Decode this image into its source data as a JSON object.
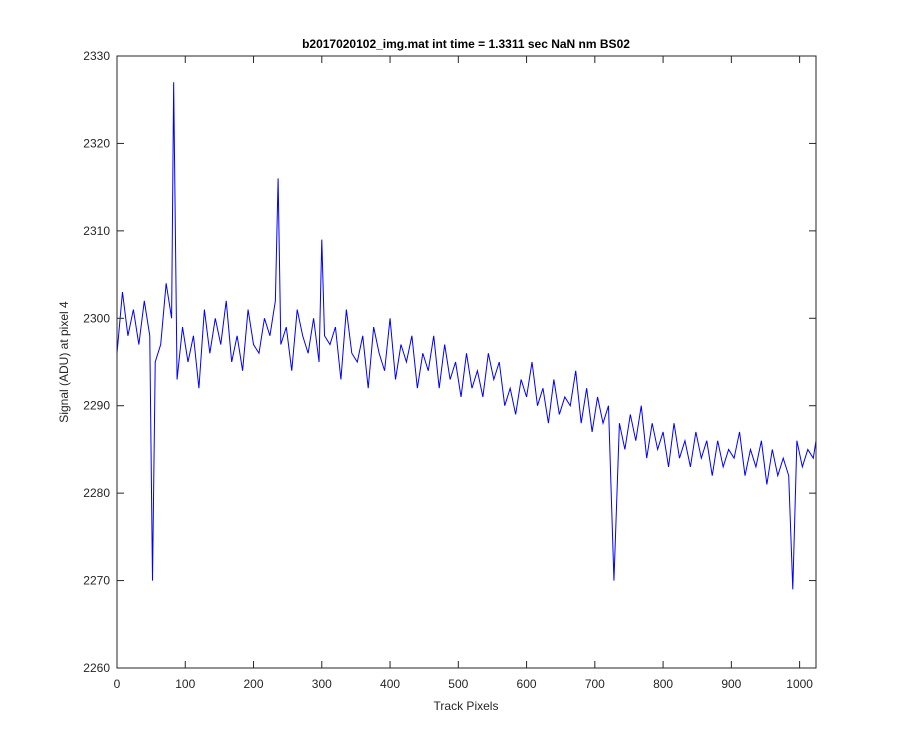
{
  "chart_data": {
    "type": "line",
    "title": "b2017020102_img.mat int time = 1.3311 sec  NaN nm BS02",
    "xlabel": "Track Pixels",
    "ylabel": "Signal (ADU) at pixel 4",
    "xlim": [
      0,
      1024
    ],
    "ylim": [
      2260,
      2330
    ],
    "x_ticks": [
      0,
      100,
      200,
      300,
      400,
      500,
      600,
      700,
      800,
      900,
      1000
    ],
    "y_ticks": [
      2260,
      2270,
      2280,
      2290,
      2300,
      2310,
      2320,
      2330
    ],
    "grid": false,
    "line_color": "#0000ff",
    "series": [
      {
        "name": "",
        "x": [
          0,
          8,
          16,
          24,
          32,
          40,
          48,
          52,
          56,
          64,
          72,
          80,
          83,
          88,
          96,
          104,
          112,
          120,
          128,
          136,
          144,
          152,
          160,
          168,
          176,
          184,
          192,
          200,
          208,
          216,
          224,
          232,
          236,
          240,
          248,
          256,
          264,
          272,
          280,
          288,
          296,
          300,
          304,
          312,
          320,
          328,
          336,
          344,
          352,
          360,
          368,
          376,
          384,
          392,
          400,
          408,
          416,
          424,
          432,
          440,
          448,
          456,
          464,
          472,
          480,
          488,
          496,
          504,
          512,
          520,
          528,
          536,
          544,
          552,
          560,
          568,
          576,
          584,
          592,
          600,
          608,
          616,
          624,
          632,
          640,
          648,
          656,
          664,
          672,
          680,
          688,
          696,
          704,
          712,
          720,
          728,
          736,
          744,
          752,
          760,
          768,
          776,
          784,
          792,
          800,
          808,
          816,
          824,
          832,
          840,
          848,
          856,
          864,
          872,
          880,
          888,
          896,
          904,
          912,
          920,
          928,
          936,
          944,
          952,
          960,
          968,
          976,
          984,
          990,
          996,
          1004,
          1012,
          1020,
          1024
        ],
        "y": [
          2296,
          2303,
          2298,
          2301,
          2297,
          2302,
          2298,
          2270,
          2295,
          2297,
          2304,
          2300,
          2327,
          2293,
          2299,
          2295,
          2298,
          2292,
          2301,
          2296,
          2300,
          2297,
          2302,
          2295,
          2298,
          2294,
          2301,
          2297,
          2296,
          2300,
          2298,
          2302,
          2316,
          2297,
          2299,
          2294,
          2301,
          2298,
          2296,
          2300,
          2295,
          2309,
          2298,
          2297,
          2299,
          2293,
          2301,
          2296,
          2295,
          2298,
          2292,
          2299,
          2296,
          2294,
          2300,
          2293,
          2297,
          2295,
          2298,
          2292,
          2296,
          2294,
          2298,
          2292,
          2297,
          2293,
          2295,
          2291,
          2296,
          2292,
          2294,
          2291,
          2296,
          2293,
          2295,
          2290,
          2292,
          2289,
          2293,
          2291,
          2295,
          2290,
          2292,
          2288,
          2293,
          2289,
          2291,
          2290,
          2294,
          2288,
          2292,
          2287,
          2291,
          2288,
          2290,
          2270,
          2288,
          2285,
          2289,
          2286,
          2290,
          2284,
          2288,
          2285,
          2287,
          2283,
          2288,
          2284,
          2286,
          2283,
          2287,
          2284,
          2286,
          2282,
          2286,
          2283,
          2285,
          2284,
          2287,
          2282,
          2285,
          2283,
          2286,
          2281,
          2285,
          2282,
          2284,
          2282,
          2269,
          2286,
          2283,
          2285,
          2284,
          2286
        ]
      }
    ]
  }
}
